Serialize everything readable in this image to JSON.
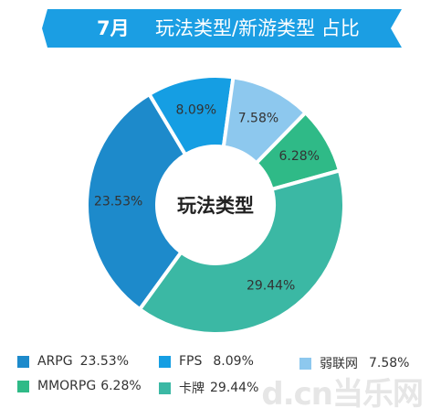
{
  "banner": {
    "month": "7月",
    "title": "玩法类型/新游类型 占比"
  },
  "chart_data": {
    "type": "pie",
    "variant": "donut",
    "center_label": "玩法类型",
    "slices": [
      {
        "name": "ARPG",
        "value": 23.53,
        "label": "23.53%",
        "color": "#1d8acb"
      },
      {
        "name": "FPS",
        "value": 8.09,
        "label": "8.09%",
        "color": "#159ee3"
      },
      {
        "name": "弱联网",
        "value": 7.58,
        "label": "7.58%",
        "color": "#8dc8ee"
      },
      {
        "name": "MMORPG",
        "value": 6.28,
        "label": "6.28%",
        "color": "#2fba87"
      },
      {
        "name": "卡牌",
        "value": 29.44,
        "label": "29.44%",
        "color": "#3bb8a4"
      }
    ],
    "legend": [
      {
        "name": "ARPG",
        "value": "23.53%",
        "color": "#1d8acb"
      },
      {
        "name": "FPS",
        "value": "8.09%",
        "color": "#159ee3"
      },
      {
        "name": "弱联网",
        "value": "7.58%",
        "color": "#8dc8ee"
      },
      {
        "name": "MMORPG",
        "value": "6.28%",
        "color": "#2fba87"
      },
      {
        "name": "卡牌",
        "value": "29.44%",
        "color": "#3bb8a4"
      }
    ],
    "legend_position": "bottom"
  },
  "watermark": {
    "text": "d.cn当乐网"
  }
}
